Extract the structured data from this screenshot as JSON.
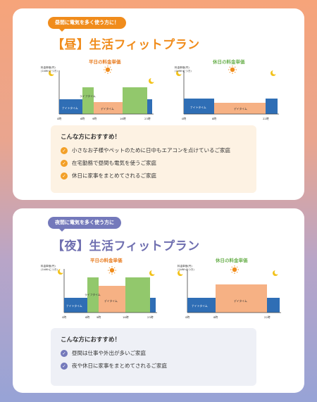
{
  "day_card": {
    "badge": "昼間に電気を多く使う方に！",
    "title": "【昼】生活フィットプラン",
    "recommend_title": "こんな方におすすめ！",
    "recommend_items": [
      "小さなお子様やペットのために日中もエアコンを点けているご家庭",
      "在宅勤務で昼間も電気を使うご家庭",
      "休日に家事をまとめてされるご家庭"
    ],
    "weekday_chart": {
      "caption": "平日の料金単価",
      "unit_line1": "料金単価(円)",
      "unit_line2": "(1kWhにつき)",
      "band_labels": [
        "ナイトタイム",
        "ライフタイム",
        "デイタイム"
      ],
      "tick_labels": [
        "0時",
        "6時",
        "9時",
        "16時",
        "23時"
      ]
    },
    "holiday_chart": {
      "caption": "休日の料金単価",
      "unit_line1": "料金単価(円)",
      "unit_line2": "(1kWhにつき)",
      "band_labels": [
        "ナイトタイム",
        "デイタイム"
      ],
      "tick_labels": [
        "0時",
        "8時",
        "22時"
      ]
    }
  },
  "night_card": {
    "badge": "夜間に電気を多く使う方に",
    "title": "【夜】生活フィットプラン",
    "recommend_title": "こんな方におすすめ！",
    "recommend_items": [
      "昼間は仕事や外出が多いご家庭",
      "夜や休日に家事をまとめてされるご家庭"
    ],
    "weekday_chart": {
      "caption": "平日の料金単価",
      "unit_line1": "料金単価(円)",
      "unit_line2": "(1kWhにつき)",
      "band_labels": [
        "ナイトタイム",
        "ライフタイム",
        "デイタイム"
      ],
      "tick_labels": [
        "0時",
        "6時",
        "9時",
        "16時",
        "23時"
      ]
    },
    "holiday_chart": {
      "caption": "休日の料金単価",
      "unit_line1": "料金単価(円)",
      "unit_line2": "(1kWhにつき)",
      "band_labels": [
        "ナイトタイム",
        "デイタイム"
      ],
      "tick_labels": [
        "0時",
        "8時",
        "22時"
      ]
    }
  },
  "colors": {
    "night_band": "#2f6eb5",
    "life_band": "#92c86c",
    "day_band": "#f6b184",
    "sun": "#f08c1c",
    "moon": "#f2c21b"
  },
  "icons": [
    "sun-icon",
    "moon-icon",
    "check-icon"
  ]
}
